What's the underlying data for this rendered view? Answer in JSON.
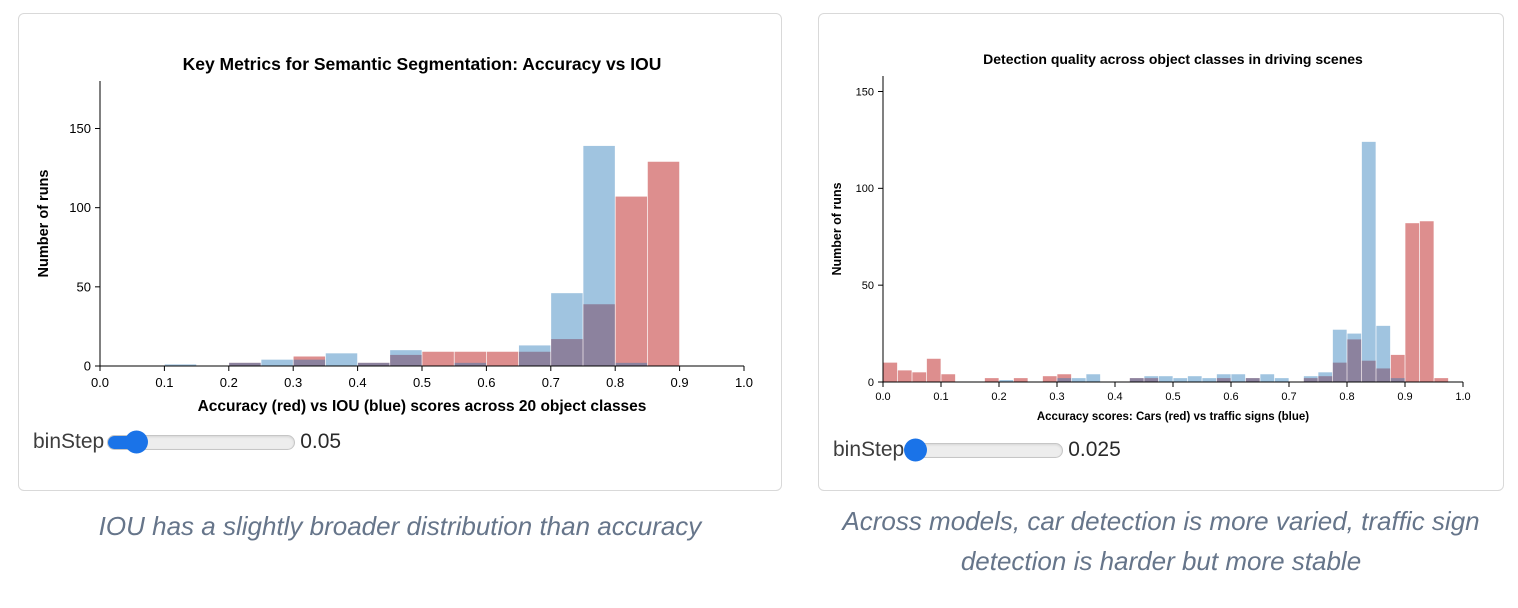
{
  "colors": {
    "bar_red": "#dd8e8e",
    "bar_blue_base": "#1c73b4",
    "bar_blue_opacity": 0.42,
    "overlap_purple": "#90839d",
    "slider_accent": "#1a73e8",
    "caption_text": "#66758a",
    "axis": "#000000",
    "card_border": "#d9d9d9"
  },
  "cards": [
    {
      "slider": {
        "label": "binStep",
        "value": "0.05"
      },
      "caption": "IOU has a slightly broader distribution than accuracy"
    },
    {
      "slider": {
        "label": "binStep",
        "value": "0.025"
      },
      "caption": "Across models, car detection is more varied, traffic sign detection is harder but more stable"
    }
  ],
  "chart_data": [
    {
      "type": "bar",
      "subtype": "overlaid-histogram",
      "title": "Key Metrics for Semantic Segmentation: Accuracy vs IOU",
      "xlabel": "Accuracy (red) vs IOU (blue) scores across 20 object classes",
      "ylabel": "Number of runs",
      "xlim": [
        0,
        1
      ],
      "ylim": [
        0,
        180
      ],
      "bin_step": 0.05,
      "grid": false,
      "legend_position": "none",
      "x_ticks": [
        "0.0",
        "0.1",
        "0.2",
        "0.3",
        "0.4",
        "0.5",
        "0.6",
        "0.7",
        "0.8",
        "0.9",
        "1.0"
      ],
      "y_ticks": [
        0,
        50,
        100,
        150
      ],
      "series": [
        {
          "name": "Accuracy (red)",
          "color": "#dd8e8e",
          "opacity": 1,
          "values": [
            0,
            0,
            0,
            0,
            2,
            0,
            6,
            0,
            2,
            7,
            9,
            9,
            9,
            9,
            17,
            39,
            107,
            129,
            0,
            0
          ]
        },
        {
          "name": "IOU (blue)",
          "color": "#1c73b4",
          "opacity": 0.42,
          "values": [
            0,
            0,
            1,
            0,
            2,
            4,
            4,
            8,
            2,
            10,
            0,
            2,
            0,
            13,
            46,
            139,
            2,
            0,
            0,
            0
          ]
        }
      ]
    },
    {
      "type": "bar",
      "subtype": "overlaid-histogram",
      "title": "Detection quality across object classes in driving scenes",
      "xlabel": "Accuracy scores: Cars (red) vs traffic signs (blue)",
      "ylabel": "Number of runs",
      "xlim": [
        0,
        1
      ],
      "ylim": [
        0,
        158
      ],
      "bin_step": 0.025,
      "grid": false,
      "legend_position": "none",
      "x_ticks": [
        "0.0",
        "0.1",
        "0.2",
        "0.3",
        "0.4",
        "0.5",
        "0.6",
        "0.7",
        "0.8",
        "0.9",
        "1.0"
      ],
      "y_ticks": [
        0,
        50,
        100,
        150
      ],
      "series": [
        {
          "name": "Cars (red)",
          "color": "#dd8e8e",
          "opacity": 1,
          "values": [
            10,
            6,
            5,
            12,
            4,
            0,
            0,
            2,
            0,
            2,
            0,
            3,
            4,
            0,
            0,
            0,
            0,
            2,
            2,
            0,
            0,
            0,
            0,
            2,
            0,
            2,
            0,
            0,
            0,
            2,
            3,
            10,
            22,
            11,
            7,
            14,
            82,
            83,
            2,
            0
          ]
        },
        {
          "name": "Traffic signs (blue)",
          "color": "#1c73b4",
          "opacity": 0.42,
          "values": [
            0,
            0,
            0,
            0,
            0,
            0,
            0,
            0,
            1,
            0,
            0,
            0,
            2,
            2,
            4,
            0,
            0,
            2,
            3,
            3,
            2,
            3,
            2,
            4,
            4,
            2,
            4,
            2,
            0,
            3,
            5,
            27,
            25,
            124,
            29,
            2,
            0,
            0,
            0,
            0
          ]
        }
      ]
    }
  ]
}
